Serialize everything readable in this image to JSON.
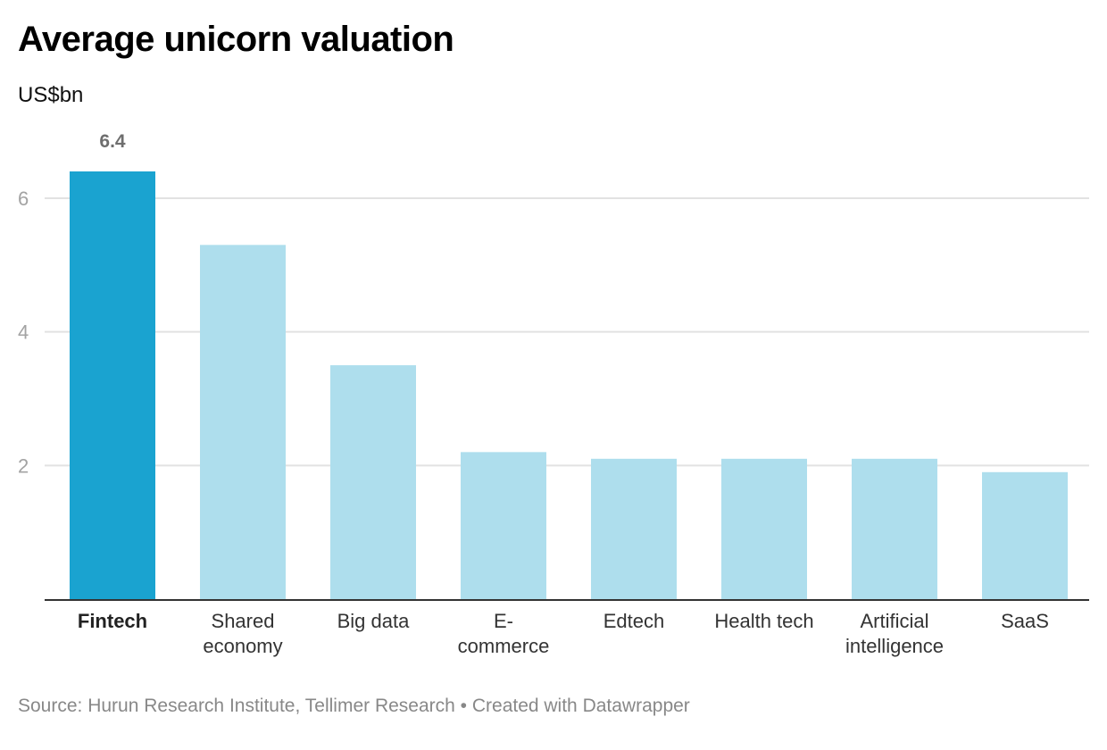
{
  "header": {
    "title": "Average unicorn valuation",
    "subtitle": "US$bn"
  },
  "footer": {
    "source_text": "Source: Hurun Research Institute, Tellimer Research • Created with Datawrapper"
  },
  "colors": {
    "highlight": "#1aa3d0",
    "bar": "#aedeed",
    "grid": "#e2e2e2",
    "axis": "#333333"
  },
  "chart_data": {
    "type": "bar",
    "categories": [
      [
        "Fintech"
      ],
      [
        "Shared",
        "economy"
      ],
      [
        "Big data"
      ],
      [
        "E-",
        "commerce"
      ],
      [
        "Edtech"
      ],
      [
        "Health tech"
      ],
      [
        "Artificial",
        "intelligence"
      ],
      [
        "SaaS"
      ]
    ],
    "values": [
      6.4,
      5.3,
      3.5,
      2.2,
      2.1,
      2.1,
      2.1,
      1.9
    ],
    "highlight_index": 0,
    "data_labels": [
      {
        "index": 0,
        "text": "6.4"
      }
    ],
    "y_ticks": [
      {
        "value": 2,
        "label": "2"
      },
      {
        "value": 4,
        "label": "4"
      },
      {
        "value": 6,
        "label": "6"
      }
    ],
    "ylim": [
      0,
      6.4
    ],
    "grid": true,
    "legend": "none"
  }
}
